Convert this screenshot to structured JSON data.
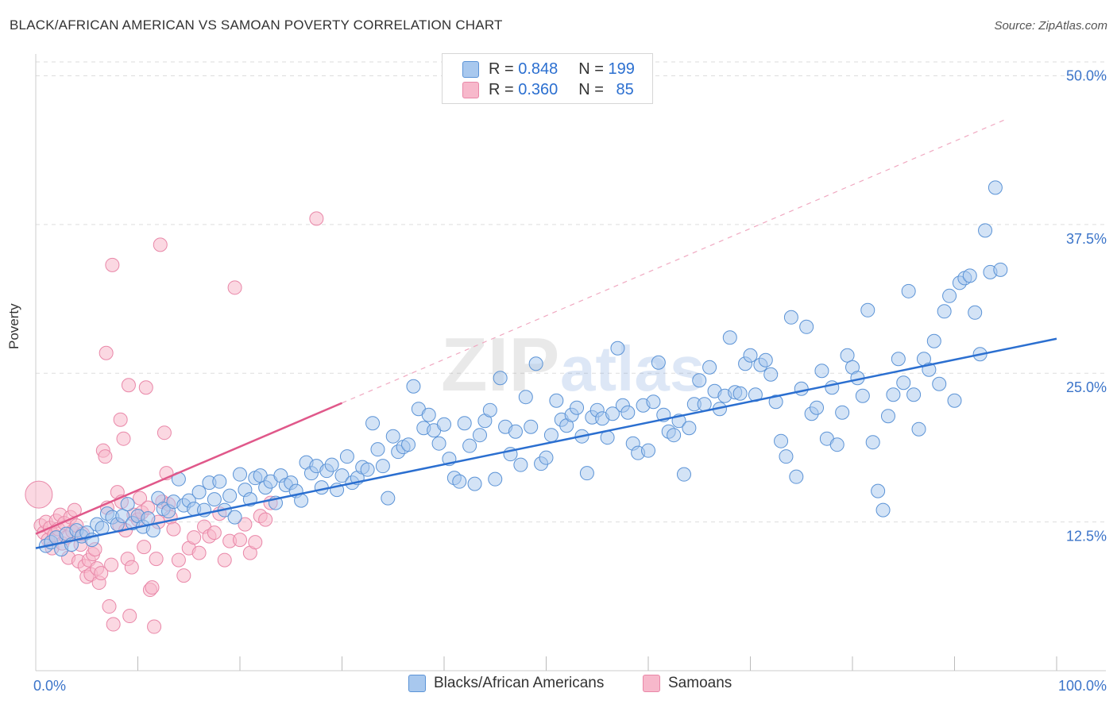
{
  "header": {
    "title": "BLACK/AFRICAN AMERICAN VS SAMOAN POVERTY CORRELATION CHART",
    "source": "Source: ZipAtlas.com"
  },
  "watermark": {
    "text_zip": "ZIP",
    "text_atlas": "atlas"
  },
  "legend_top": {
    "rows": [
      {
        "r_label": "R = ",
        "r_value": "0.848",
        "n_label": "N = ",
        "n_value": "199"
      },
      {
        "r_label": "R = ",
        "r_value": "0.360",
        "n_label": "N = ",
        "n_value": "85"
      }
    ]
  },
  "colors": {
    "blue_fill": "#a8c8ee",
    "blue_stroke": "#5b93d6",
    "blue_line": "#2b6fd0",
    "pink_fill": "#f7b8cb",
    "pink_stroke": "#e987a8",
    "pink_line": "#e0588a",
    "axis_text": "#3b74c9",
    "grid": "#dddddd"
  },
  "chart_data": {
    "type": "scatter",
    "title": "BLACK/AFRICAN AMERICAN VS SAMOAN POVERTY CORRELATION CHART",
    "ylabel": "Poverty",
    "xlabel": "",
    "xlim": [
      0,
      100
    ],
    "ylim": [
      0,
      52
    ],
    "x_tick_labels": [
      "0.0%",
      "100.0%"
    ],
    "y_ticks": [
      12.5,
      25.0,
      37.5,
      50.0
    ],
    "y_tick_labels": [
      "12.5%",
      "25.0%",
      "37.5%",
      "50.0%"
    ],
    "grid": true,
    "legend_position": "bottom",
    "series": [
      {
        "name": "Blacks/African Americans",
        "R": 0.848,
        "N": 199,
        "trend": {
          "x0": 0,
          "y0": 10.3,
          "x1": 100,
          "y1": 27.9
        },
        "points": [
          [
            1,
            10.5
          ],
          [
            1.5,
            10.8
          ],
          [
            2,
            11.2
          ],
          [
            2.5,
            10.2
          ],
          [
            3,
            11.5
          ],
          [
            3.5,
            10.6
          ],
          [
            4,
            11.8
          ],
          [
            4.5,
            11.3
          ],
          [
            5,
            11.6
          ],
          [
            5.5,
            11.0
          ],
          [
            6,
            12.3
          ],
          [
            6.5,
            12.0
          ],
          [
            7,
            13.2
          ],
          [
            7.5,
            12.9
          ],
          [
            8,
            12.3
          ],
          [
            8.5,
            13.0
          ],
          [
            9,
            14.0
          ],
          [
            9.5,
            12.4
          ],
          [
            10,
            13.0
          ],
          [
            10.5,
            12.1
          ],
          [
            11,
            12.8
          ],
          [
            11.5,
            11.8
          ],
          [
            12,
            14.5
          ],
          [
            12.5,
            13.6
          ],
          [
            13,
            13.4
          ],
          [
            13.5,
            14.2
          ],
          [
            14,
            16.1
          ],
          [
            14.5,
            13.9
          ],
          [
            15,
            14.3
          ],
          [
            15.5,
            13.6
          ],
          [
            16,
            15.0
          ],
          [
            16.5,
            13.5
          ],
          [
            17,
            15.8
          ],
          [
            17.5,
            14.4
          ],
          [
            18,
            15.9
          ],
          [
            18.5,
            13.5
          ],
          [
            19,
            14.7
          ],
          [
            19.5,
            12.9
          ],
          [
            20,
            16.5
          ],
          [
            20.5,
            15.2
          ],
          [
            21,
            14.4
          ],
          [
            21.5,
            16.2
          ],
          [
            22,
            16.4
          ],
          [
            22.5,
            15.4
          ],
          [
            23,
            15.9
          ],
          [
            23.5,
            14.1
          ],
          [
            24,
            16.4
          ],
          [
            24.5,
            15.6
          ],
          [
            25,
            15.8
          ],
          [
            25.5,
            15.1
          ],
          [
            26,
            14.3
          ],
          [
            26.5,
            17.5
          ],
          [
            27,
            16.6
          ],
          [
            27.5,
            17.2
          ],
          [
            28,
            15.4
          ],
          [
            28.5,
            16.8
          ],
          [
            29,
            17.3
          ],
          [
            29.5,
            15.2
          ],
          [
            30,
            16.4
          ],
          [
            30.5,
            18.0
          ],
          [
            31,
            15.8
          ],
          [
            31.5,
            16.2
          ],
          [
            32,
            17.1
          ],
          [
            32.5,
            16.9
          ],
          [
            33,
            20.8
          ],
          [
            33.5,
            18.6
          ],
          [
            34,
            17.2
          ],
          [
            34.5,
            14.5
          ],
          [
            35,
            19.7
          ],
          [
            35.5,
            18.4
          ],
          [
            36,
            18.8
          ],
          [
            36.5,
            19.0
          ],
          [
            37,
            23.9
          ],
          [
            37.5,
            22.0
          ],
          [
            38,
            20.4
          ],
          [
            38.5,
            21.5
          ],
          [
            39,
            20.2
          ],
          [
            39.5,
            19.1
          ],
          [
            40,
            20.7
          ],
          [
            40.5,
            17.8
          ],
          [
            41,
            16.2
          ],
          [
            41.5,
            15.9
          ],
          [
            42,
            20.8
          ],
          [
            42.5,
            18.9
          ],
          [
            43,
            15.7
          ],
          [
            43.5,
            19.8
          ],
          [
            44,
            21.0
          ],
          [
            44.5,
            21.9
          ],
          [
            45,
            16.1
          ],
          [
            45.5,
            24.6
          ],
          [
            46,
            20.5
          ],
          [
            46.5,
            18.2
          ],
          [
            47,
            20.1
          ],
          [
            47.5,
            17.3
          ],
          [
            48,
            23.0
          ],
          [
            48.5,
            20.5
          ],
          [
            49,
            25.8
          ],
          [
            49.5,
            17.4
          ],
          [
            50,
            17.9
          ],
          [
            50.5,
            19.8
          ],
          [
            51,
            22.7
          ],
          [
            51.5,
            21.1
          ],
          [
            52,
            20.6
          ],
          [
            52.5,
            21.5
          ],
          [
            53,
            22.1
          ],
          [
            53.5,
            19.7
          ],
          [
            54,
            16.6
          ],
          [
            54.5,
            21.3
          ],
          [
            55,
            21.9
          ],
          [
            55.5,
            21.2
          ],
          [
            56,
            19.6
          ],
          [
            56.5,
            21.6
          ],
          [
            57,
            27.1
          ],
          [
            57.5,
            22.3
          ],
          [
            58,
            21.7
          ],
          [
            58.5,
            19.1
          ],
          [
            59,
            18.3
          ],
          [
            59.5,
            22.3
          ],
          [
            60,
            18.5
          ],
          [
            60.5,
            22.6
          ],
          [
            61,
            25.9
          ],
          [
            61.5,
            21.5
          ],
          [
            62,
            20.1
          ],
          [
            62.5,
            19.8
          ],
          [
            63,
            21.0
          ],
          [
            63.5,
            16.5
          ],
          [
            64,
            20.4
          ],
          [
            64.5,
            22.4
          ],
          [
            65,
            24.4
          ],
          [
            65.5,
            22.4
          ],
          [
            66,
            25.5
          ],
          [
            66.5,
            23.5
          ],
          [
            67,
            22.0
          ],
          [
            67.5,
            23.1
          ],
          [
            68,
            28.0
          ],
          [
            68.5,
            23.4
          ],
          [
            69,
            23.3
          ],
          [
            69.5,
            25.8
          ],
          [
            70,
            26.5
          ],
          [
            70.5,
            23.2
          ],
          [
            71,
            25.7
          ],
          [
            71.5,
            26.1
          ],
          [
            72,
            24.9
          ],
          [
            72.5,
            22.6
          ],
          [
            73,
            19.3
          ],
          [
            73.5,
            18.0
          ],
          [
            74,
            29.7
          ],
          [
            74.5,
            16.3
          ],
          [
            75,
            23.7
          ],
          [
            75.5,
            28.9
          ],
          [
            76,
            21.6
          ],
          [
            76.5,
            22.1
          ],
          [
            77,
            25.2
          ],
          [
            77.5,
            19.5
          ],
          [
            78,
            23.8
          ],
          [
            78.5,
            19.0
          ],
          [
            79,
            21.7
          ],
          [
            79.5,
            26.5
          ],
          [
            80,
            25.5
          ],
          [
            80.5,
            24.6
          ],
          [
            81,
            23.1
          ],
          [
            81.5,
            30.3
          ],
          [
            82,
            19.2
          ],
          [
            82.5,
            15.1
          ],
          [
            83,
            13.5
          ],
          [
            83.5,
            21.4
          ],
          [
            84,
            23.2
          ],
          [
            84.5,
            26.2
          ],
          [
            85,
            24.2
          ],
          [
            85.5,
            31.9
          ],
          [
            86,
            23.2
          ],
          [
            86.5,
            20.3
          ],
          [
            87,
            26.2
          ],
          [
            87.5,
            25.3
          ],
          [
            88,
            27.7
          ],
          [
            88.5,
            24.1
          ],
          [
            89,
            30.2
          ],
          [
            89.5,
            31.5
          ],
          [
            90,
            22.7
          ],
          [
            90.5,
            32.6
          ],
          [
            91,
            33.0
          ],
          [
            91.5,
            33.2
          ],
          [
            92,
            30.1
          ],
          [
            92.5,
            26.6
          ],
          [
            93,
            37.0
          ],
          [
            93.5,
            33.5
          ],
          [
            94,
            40.6
          ],
          [
            94.5,
            33.7
          ]
        ]
      },
      {
        "name": "Samoans",
        "R": 0.36,
        "N": 85,
        "trend": {
          "x0": 0,
          "y0": 11.5,
          "x1": 30,
          "y1": 22.5
        },
        "points": [
          [
            0.5,
            12.2
          ],
          [
            0.8,
            11.6
          ],
          [
            1,
            12.5
          ],
          [
            1.2,
            11.0
          ],
          [
            1.4,
            12.0
          ],
          [
            1.6,
            10.3
          ],
          [
            1.8,
            11.4
          ],
          [
            2,
            12.6
          ],
          [
            2.2,
            11.9
          ],
          [
            2.4,
            13.1
          ],
          [
            2.6,
            10.7
          ],
          [
            2.8,
            12.4
          ],
          [
            3,
            11.2
          ],
          [
            3.2,
            9.5
          ],
          [
            3.4,
            12.9
          ],
          [
            3.6,
            11.7
          ],
          [
            3.8,
            13.5
          ],
          [
            4,
            12.2
          ],
          [
            4.2,
            9.2
          ],
          [
            4.4,
            10.6
          ],
          [
            4.6,
            11.5
          ],
          [
            4.8,
            8.8
          ],
          [
            5,
            7.9
          ],
          [
            5.2,
            9.3
          ],
          [
            5.4,
            8.1
          ],
          [
            5.6,
            9.8
          ],
          [
            5.8,
            10.2
          ],
          [
            6,
            8.6
          ],
          [
            6.2,
            7.4
          ],
          [
            6.4,
            8.2
          ],
          [
            6.6,
            18.5
          ],
          [
            6.8,
            18.0
          ],
          [
            7,
            13.7
          ],
          [
            7.2,
            5.4
          ],
          [
            7.4,
            8.9
          ],
          [
            7.6,
            3.9
          ],
          [
            8,
            15.0
          ],
          [
            8.2,
            12.2
          ],
          [
            8.4,
            14.2
          ],
          [
            8.6,
            19.5
          ],
          [
            8.8,
            11.8
          ],
          [
            9,
            9.4
          ],
          [
            9.2,
            4.6
          ],
          [
            9.4,
            8.7
          ],
          [
            9.6,
            13.1
          ],
          [
            10,
            12.7
          ],
          [
            10.2,
            14.5
          ],
          [
            10.4,
            13.3
          ],
          [
            10.6,
            10.4
          ],
          [
            10.8,
            23.8
          ],
          [
            11,
            13.7
          ],
          [
            11.2,
            6.8
          ],
          [
            11.4,
            7.0
          ],
          [
            11.6,
            3.7
          ],
          [
            11.8,
            9.4
          ],
          [
            12,
            12.5
          ],
          [
            12.2,
            35.8
          ],
          [
            12.4,
            14.2
          ],
          [
            12.6,
            20.0
          ],
          [
            12.8,
            16.6
          ],
          [
            13,
            14.0
          ],
          [
            13.2,
            12.9
          ],
          [
            13.5,
            11.9
          ],
          [
            14,
            9.3
          ],
          [
            14.5,
            8.0
          ],
          [
            15,
            10.3
          ],
          [
            15.5,
            11.2
          ],
          [
            16,
            9.9
          ],
          [
            16.5,
            12.1
          ],
          [
            17,
            11.3
          ],
          [
            17.5,
            11.6
          ],
          [
            18,
            13.2
          ],
          [
            18.5,
            9.3
          ],
          [
            19,
            10.9
          ],
          [
            19.5,
            32.2
          ],
          [
            20,
            11.0
          ],
          [
            20.5,
            12.3
          ],
          [
            21,
            9.9
          ],
          [
            21.5,
            10.8
          ],
          [
            22,
            13.0
          ],
          [
            22.5,
            12.7
          ],
          [
            23,
            14.1
          ],
          [
            27.5,
            38.0
          ],
          [
            7.5,
            34.1
          ],
          [
            6.9,
            26.7
          ],
          [
            9.1,
            24.0
          ],
          [
            8.3,
            21.1
          ]
        ]
      }
    ]
  },
  "legend_bottom": {
    "items": [
      {
        "label": "Blacks/African Americans"
      },
      {
        "label": "Samoans"
      }
    ]
  }
}
